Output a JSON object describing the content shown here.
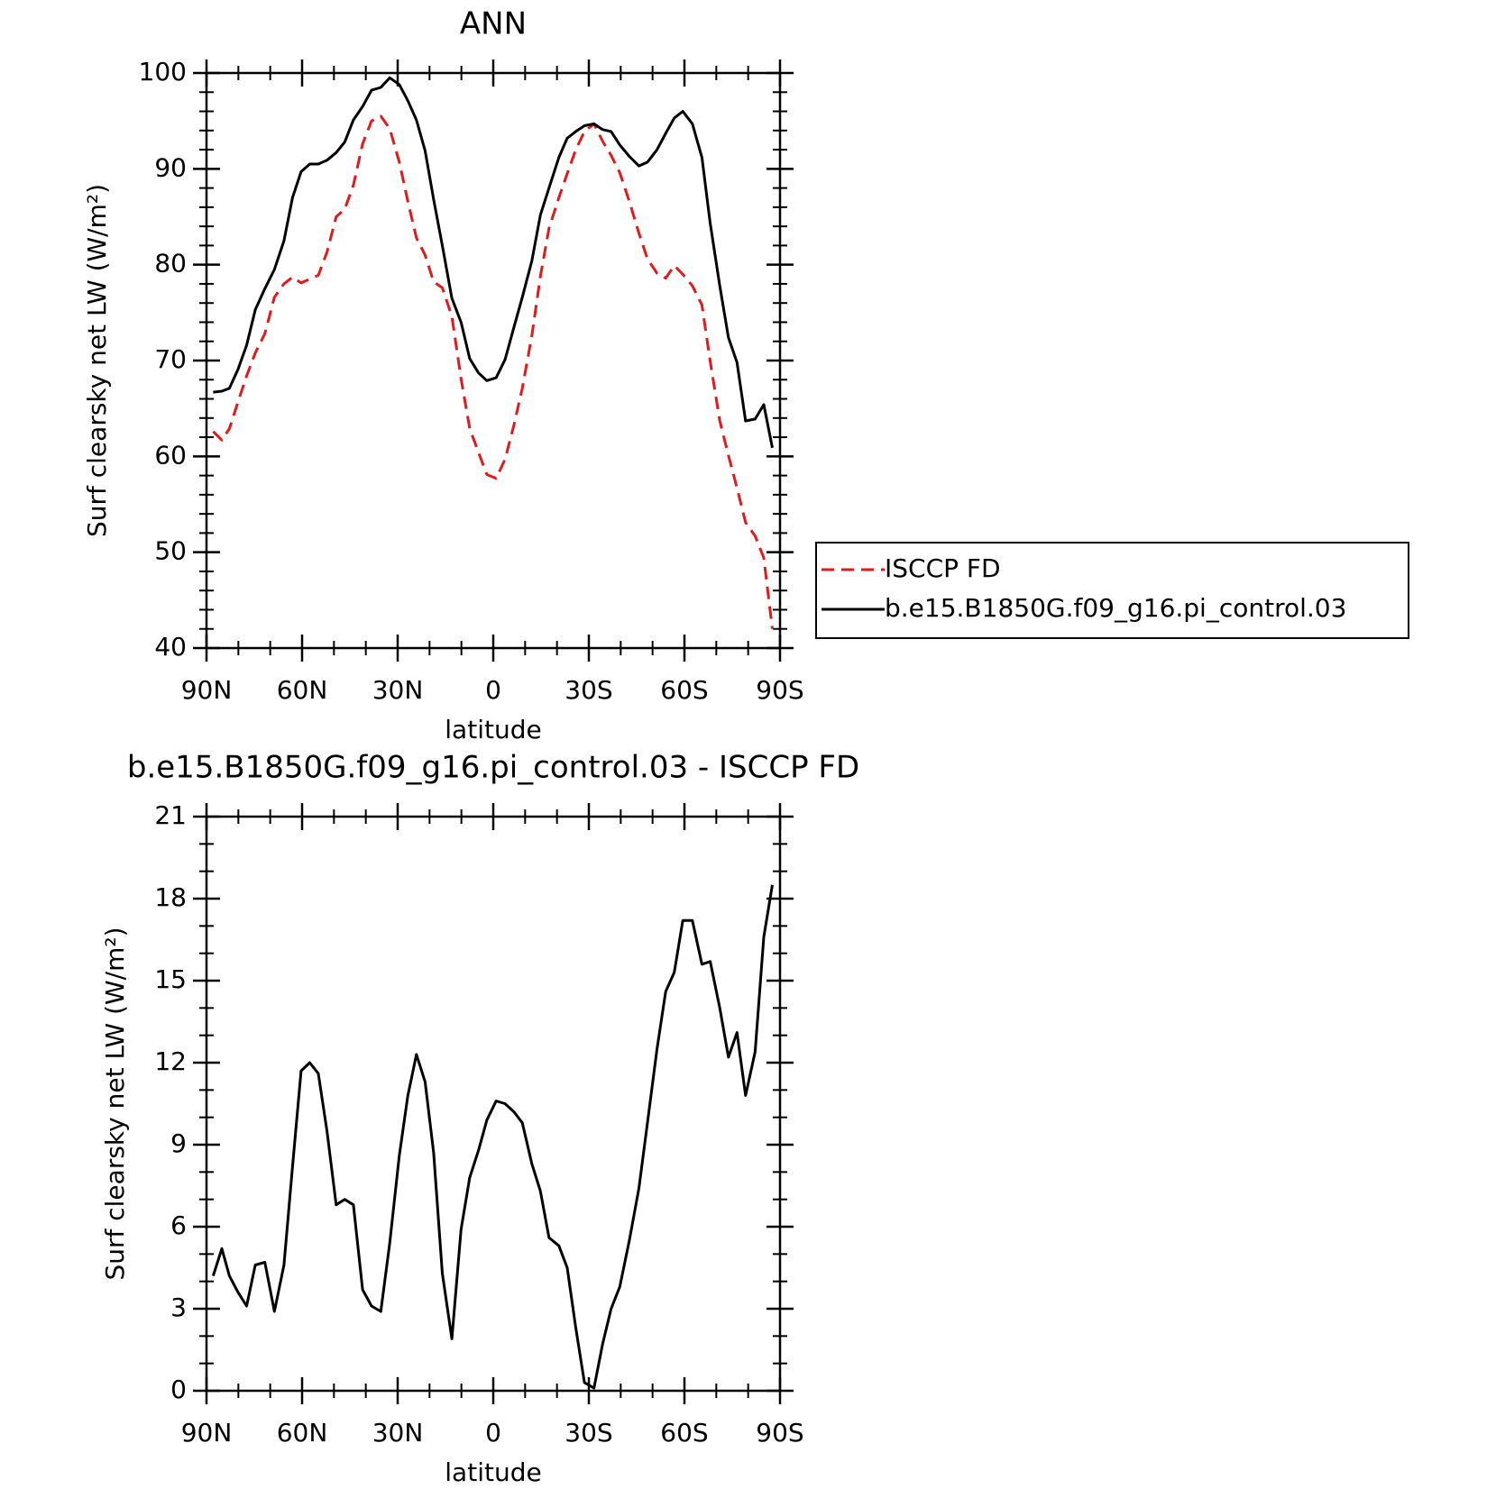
{
  "chart_data": [
    {
      "type": "line",
      "title": "ANN",
      "xlabel": "latitude",
      "ylabel": "Surf clearsky net LW (W/m²)",
      "x": [
        87.9,
        85.2,
        82.8,
        80.1,
        77.4,
        74.7,
        71.7,
        68.7,
        65.7,
        63.0,
        60.3,
        57.6,
        54.9,
        52.2,
        49.3,
        46.6,
        43.9,
        41.0,
        38.2,
        35.3,
        32.5,
        29.5,
        26.8,
        24.1,
        21.4,
        18.7,
        16.0,
        13.0,
        10.1,
        7.4,
        4.6,
        2.0,
        -0.9,
        -3.7,
        -6.5,
        -9.1,
        -12.1,
        -14.8,
        -17.5,
        -20.6,
        -23.2,
        -25.9,
        -28.6,
        -31.6,
        -34.3,
        -37.0,
        -39.7,
        -42.7,
        -45.7,
        -48.4,
        -51.4,
        -54.1,
        -56.8,
        -59.5,
        -62.5,
        -65.5,
        -68.1,
        -71.1,
        -73.8,
        -76.5,
        -79.2,
        -82.2,
        -84.9,
        -87.6
      ],
      "series": [
        {
          "name": "ISCCP FD",
          "color": "#e31a1c",
          "dashed": true,
          "values": [
            62.6,
            61.7,
            62.9,
            65.7,
            68.4,
            70.8,
            72.8,
            76.6,
            78,
            78.7,
            78.1,
            78.5,
            78.9,
            81.3,
            85,
            85.8,
            88.3,
            92.6,
            95,
            95.5,
            94.2,
            90.7,
            86.6,
            82.8,
            81,
            78.2,
            77.6,
            74.6,
            68.1,
            62.9,
            60.4,
            58.1,
            57.7,
            59.7,
            63.3,
            67.1,
            72.6,
            78.8,
            83.8,
            87,
            89.5,
            92,
            93.9,
            94.7,
            92.9,
            91.4,
            89.6,
            86.6,
            83.3,
            80.6,
            79.1,
            78.6,
            79.9,
            79,
            77.8,
            75.8,
            69.9,
            63.7,
            60.1,
            56.7,
            53.1,
            51.7,
            49.4,
            42
          ]
        },
        {
          "name": "b.e15.B1850G.f09_g16.pi_control.03",
          "color": "#000000",
          "dashed": false,
          "values": [
            66.7,
            66.8,
            67.1,
            69.1,
            71.6,
            75.3,
            77.5,
            79.5,
            82.5,
            87,
            89.7,
            90.5,
            90.5,
            90.9,
            91.7,
            92.8,
            95.1,
            96.5,
            98.2,
            98.5,
            99.5,
            98.8,
            97.1,
            95.1,
            91.9,
            86.8,
            82,
            76.5,
            74,
            70.2,
            68.7,
            67.9,
            68.2,
            70.1,
            73.5,
            76.6,
            80.4,
            85.2,
            88,
            91.2,
            93.2,
            93.9,
            94.5,
            94.7,
            94.1,
            93.9,
            92.5,
            91.3,
            90.3,
            90.7,
            92,
            93.7,
            95.3,
            96,
            94.7,
            91.2,
            84.3,
            77.8,
            72.4,
            69.8,
            63.7,
            63.9,
            65.4,
            60.9
          ]
        }
      ],
      "xlim": [
        90,
        -90
      ],
      "xticks": [
        {
          "value": 90,
          "label": "90N"
        },
        {
          "value": 60,
          "label": "60N"
        },
        {
          "value": 30,
          "label": "30N"
        },
        0,
        {
          "value": -30,
          "label": "30S"
        },
        {
          "value": -60,
          "label": "60S"
        },
        {
          "value": -90,
          "label": "90S"
        }
      ],
      "xminorticks": [
        80,
        70,
        50,
        40,
        20,
        10,
        -10,
        -20,
        -40,
        -50,
        -70,
        -80
      ],
      "ylim": [
        40,
        100
      ],
      "yticks": [
        40,
        50,
        60,
        70,
        80,
        90,
        100
      ],
      "yminorticks": [
        42,
        44,
        46,
        48,
        52,
        54,
        56,
        58,
        62,
        64,
        66,
        68,
        72,
        74,
        76,
        78,
        82,
        84,
        86,
        88,
        92,
        94,
        96,
        98
      ],
      "legend": "outside-right"
    },
    {
      "type": "line",
      "title": "b.e15.B1850G.f09_g16.pi_control.03 - ISCCP FD",
      "xlabel": "latitude",
      "ylabel": "Surf clearsky net LW (W/m²)",
      "x": [
        87.9,
        85.2,
        82.8,
        80.1,
        77.4,
        74.7,
        71.7,
        68.7,
        65.7,
        63.0,
        60.3,
        57.6,
        54.9,
        52.2,
        49.3,
        46.6,
        43.9,
        41.0,
        38.2,
        35.3,
        32.5,
        29.5,
        26.8,
        24.1,
        21.4,
        18.7,
        16.0,
        13.0,
        10.1,
        7.4,
        4.6,
        2.0,
        -0.9,
        -3.7,
        -6.5,
        -9.1,
        -12.1,
        -14.8,
        -17.5,
        -20.6,
        -23.2,
        -25.9,
        -28.6,
        -31.6,
        -34.3,
        -37.0,
        -39.7,
        -42.7,
        -45.7,
        -48.4,
        -51.4,
        -54.1,
        -56.8,
        -59.5,
        -62.5,
        -65.5,
        -68.1,
        -71.1,
        -73.8,
        -76.5,
        -79.2,
        -82.2,
        -84.9,
        -87.6
      ],
      "series": [
        {
          "color": "#000000",
          "dashed": false,
          "values": [
            4.2,
            5.2,
            4.2,
            3.6,
            3.1,
            4.6,
            4.7,
            2.9,
            4.6,
            8.2,
            11.7,
            12,
            11.6,
            9.5,
            6.8,
            7,
            6.8,
            3.7,
            3.1,
            2.9,
            5.4,
            8.6,
            10.8,
            12.3,
            11.3,
            8.7,
            4.3,
            1.9,
            5.9,
            7.8,
            8.8,
            9.9,
            10.6,
            10.5,
            10.2,
            9.8,
            8.3,
            7.3,
            5.6,
            5.3,
            4.5,
            2.3,
            0.3,
            0.1,
            1.7,
            3,
            3.8,
            5.5,
            7.4,
            9.8,
            12.5,
            14.6,
            15.3,
            17.2,
            17.2,
            15.6,
            15.7,
            14,
            12.2,
            13.1,
            10.8,
            12.4,
            16.6,
            18.5
          ]
        }
      ],
      "xlim": [
        90,
        -90
      ],
      "xticks": [
        {
          "value": 90,
          "label": "90N"
        },
        {
          "value": 60,
          "label": "60N"
        },
        {
          "value": 30,
          "label": "30N"
        },
        0,
        {
          "value": -30,
          "label": "30S"
        },
        {
          "value": -60,
          "label": "60S"
        },
        {
          "value": -90,
          "label": "90S"
        }
      ],
      "xminorticks": [
        80,
        70,
        50,
        40,
        20,
        10,
        -10,
        -20,
        -40,
        -50,
        -70,
        -80
      ],
      "ylim": [
        0,
        21
      ],
      "yticks": [
        0,
        3,
        6,
        9,
        12,
        15,
        18,
        21
      ],
      "yminorticks": [
        1,
        2,
        4,
        5,
        7,
        8,
        10,
        11,
        13,
        14,
        16,
        17,
        19,
        20
      ]
    }
  ]
}
